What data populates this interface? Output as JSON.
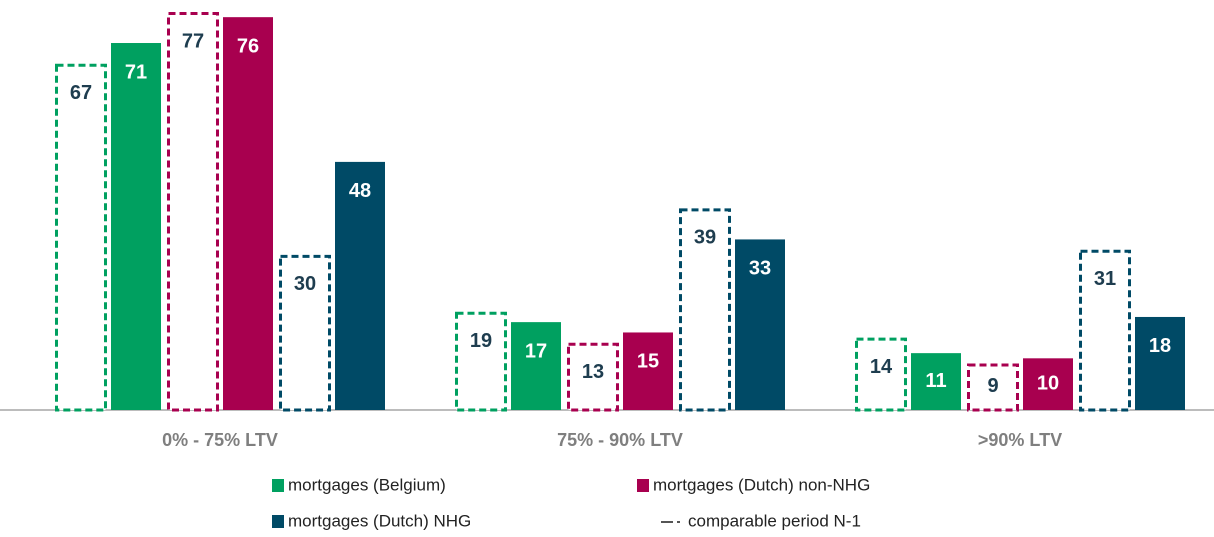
{
  "chart_data": {
    "type": "bar",
    "categories": [
      "0% - 75% LTV",
      "75% - 90% LTV",
      ">90% LTV"
    ],
    "series": [
      {
        "name": "mortgages (Belgium)",
        "color": "#00a060",
        "values": [
          71,
          17,
          11
        ],
        "previous_values": [
          67,
          19,
          14
        ]
      },
      {
        "name": "mortgages (Dutch) non-NHG",
        "color": "#a8004f",
        "values": [
          76,
          15,
          10
        ],
        "previous_values": [
          77,
          13,
          9
        ]
      },
      {
        "name": "mortgages (Dutch) NHG",
        "color": "#004a66",
        "values": [
          48,
          33,
          18
        ],
        "previous_values": [
          30,
          39,
          31
        ]
      }
    ],
    "previous_label": "comparable period N-1"
  }
}
